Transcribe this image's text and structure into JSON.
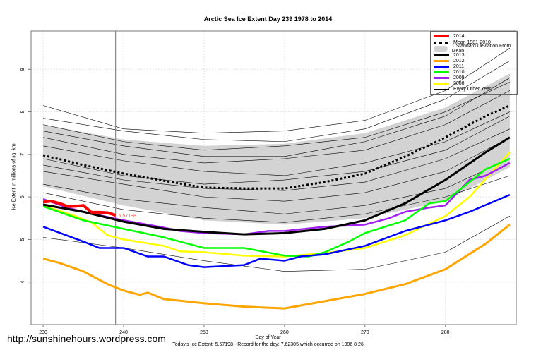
{
  "chart_data": {
    "type": "line",
    "title": "Arctic Sea Ice Extent Day 239 1978 to 2014",
    "xlabel": "Day of Year",
    "ylabel": "Ice Extent in millions of sq. km.",
    "subtitle": "Today's Ice Extent: 5.57198  - Record for the day: 7.62305 which occurred on 1996 8 26",
    "xlim": [
      228.5,
      288.8
    ],
    "ylim": [
      3.0,
      9.9
    ],
    "xticks": [
      230,
      240,
      250,
      260,
      270,
      280
    ],
    "yticks": [
      4,
      5,
      6,
      7,
      8,
      9
    ],
    "grid": true,
    "legend_position": "top-right",
    "vline_day": 239,
    "annotation": {
      "x": 239,
      "y": 5.57198,
      "text": "5.57198"
    },
    "band": {
      "name": "1 Standard Deviation From Mean",
      "color": "#d3d3d3",
      "x": [
        230,
        240,
        250,
        260,
        270,
        280,
        288
      ],
      "upper": [
        7.7,
        7.35,
        7.2,
        7.25,
        7.5,
        8.1,
        8.9
      ],
      "lower": [
        6.25,
        5.8,
        5.45,
        5.35,
        5.5,
        5.9,
        6.7
      ]
    },
    "series": [
      {
        "name": "2014",
        "color": "#ff0000",
        "width": 4,
        "x": [
          230,
          231,
          232,
          233,
          234,
          235,
          236,
          237,
          238,
          239
        ],
        "y": [
          5.88,
          5.9,
          5.85,
          5.78,
          5.78,
          5.8,
          5.64,
          5.64,
          5.63,
          5.57
        ]
      },
      {
        "name": "Mean 1981-2010",
        "color": "#000000",
        "width": 3,
        "dash": "3,3",
        "x": [
          230,
          235,
          240,
          245,
          250,
          255,
          260,
          265,
          270,
          275,
          280,
          285,
          288
        ],
        "y": [
          6.98,
          6.75,
          6.55,
          6.38,
          6.22,
          6.2,
          6.2,
          6.35,
          6.55,
          6.95,
          7.4,
          7.9,
          8.15
        ]
      },
      {
        "name": "2013",
        "color": "#000000",
        "width": 3,
        "x": [
          230,
          235,
          240,
          245,
          250,
          255,
          260,
          265,
          270,
          275,
          280,
          285,
          288
        ],
        "y": [
          5.82,
          5.65,
          5.42,
          5.25,
          5.18,
          5.12,
          5.15,
          5.25,
          5.45,
          5.85,
          6.4,
          7.05,
          7.4
        ]
      },
      {
        "name": "2012",
        "color": "#ffa500",
        "width": 3,
        "x": [
          230,
          232,
          235,
          238,
          240,
          242,
          243,
          245,
          250,
          255,
          260,
          265,
          270,
          275,
          280,
          285,
          288
        ],
        "y": [
          4.55,
          4.45,
          4.25,
          3.95,
          3.8,
          3.7,
          3.75,
          3.6,
          3.5,
          3.42,
          3.38,
          3.55,
          3.72,
          3.95,
          4.3,
          4.9,
          5.35
        ]
      },
      {
        "name": "2011",
        "color": "#0000ff",
        "width": 2.5,
        "x": [
          230,
          235,
          237,
          240,
          243,
          245,
          248,
          250,
          255,
          257,
          260,
          262,
          265,
          270,
          275,
          280,
          283,
          288
        ],
        "y": [
          5.3,
          4.95,
          4.8,
          4.8,
          4.6,
          4.6,
          4.4,
          4.35,
          4.4,
          4.55,
          4.5,
          4.6,
          4.65,
          4.85,
          5.2,
          5.45,
          5.65,
          6.05
        ]
      },
      {
        "name": "2010",
        "color": "#00ff00",
        "width": 2.5,
        "x": [
          230,
          235,
          240,
          245,
          250,
          255,
          260,
          263,
          265,
          268,
          270,
          275,
          278,
          280,
          283,
          285,
          288
        ],
        "y": [
          5.78,
          5.45,
          5.25,
          5.05,
          4.8,
          4.8,
          4.62,
          4.6,
          4.7,
          4.95,
          5.15,
          5.45,
          5.85,
          5.9,
          6.35,
          6.65,
          6.9
        ]
      },
      {
        "name": "2009",
        "color": "#a020f0",
        "width": 2.5,
        "x": [
          230,
          233,
          235,
          240,
          245,
          247,
          250,
          255,
          258,
          260,
          265,
          270,
          273,
          275,
          278,
          280,
          283,
          285,
          288
        ],
        "y": [
          5.95,
          5.75,
          5.65,
          5.45,
          5.28,
          5.2,
          5.15,
          5.12,
          5.2,
          5.2,
          5.3,
          5.35,
          5.5,
          5.65,
          5.75,
          5.8,
          6.4,
          6.5,
          6.8
        ]
      },
      {
        "name": "2008",
        "color": "#ffff00",
        "width": 2.5,
        "x": [
          230,
          234,
          236,
          238,
          240,
          245,
          247,
          250,
          255,
          260,
          265,
          270,
          275,
          280,
          283,
          288
        ],
        "y": [
          5.8,
          5.55,
          5.4,
          5.1,
          5.0,
          4.85,
          4.72,
          4.7,
          4.62,
          4.6,
          4.68,
          4.8,
          5.1,
          5.55,
          6.0,
          7.05
        ]
      }
    ],
    "other_years": {
      "name": "Every Other Year",
      "color": "#000000",
      "series": [
        {
          "x": [
            230,
            240,
            250,
            260,
            270,
            280,
            288
          ],
          "y": [
            8.15,
            7.6,
            7.5,
            7.55,
            7.8,
            8.5,
            9.5
          ]
        },
        {
          "x": [
            230,
            240,
            250,
            260,
            270,
            280,
            288
          ],
          "y": [
            7.85,
            7.55,
            7.35,
            7.3,
            7.6,
            8.3,
            9.2
          ]
        },
        {
          "x": [
            230,
            240,
            250,
            260,
            270,
            280,
            288
          ],
          "y": [
            7.7,
            7.3,
            7.1,
            7.2,
            7.4,
            8.0,
            8.7
          ]
        },
        {
          "x": [
            230,
            240,
            250,
            260,
            270,
            280,
            288
          ],
          "y": [
            7.4,
            7.0,
            6.8,
            6.9,
            7.1,
            7.7,
            8.5
          ]
        },
        {
          "x": [
            230,
            240,
            250,
            260,
            270,
            280,
            288
          ],
          "y": [
            7.2,
            6.85,
            6.6,
            6.5,
            6.8,
            7.3,
            8.0
          ]
        },
        {
          "x": [
            230,
            240,
            250,
            260,
            270,
            280,
            288
          ],
          "y": [
            6.9,
            6.5,
            6.3,
            6.4,
            6.6,
            7.1,
            7.9
          ]
        },
        {
          "x": [
            230,
            240,
            250,
            260,
            270,
            280,
            288
          ],
          "y": [
            6.6,
            6.3,
            6.0,
            5.9,
            6.1,
            6.6,
            7.4
          ]
        },
        {
          "x": [
            230,
            240,
            250,
            260,
            270,
            280,
            288
          ],
          "y": [
            6.3,
            5.95,
            5.75,
            5.6,
            5.8,
            6.2,
            6.9
          ]
        },
        {
          "x": [
            230,
            240,
            250,
            260,
            270,
            280,
            288
          ],
          "y": [
            6.1,
            5.7,
            5.5,
            5.4,
            5.6,
            6.0,
            6.5
          ]
        },
        {
          "x": [
            230,
            240,
            250,
            260,
            270,
            280,
            288
          ],
          "y": [
            5.05,
            4.8,
            4.5,
            4.25,
            4.3,
            4.7,
            5.55
          ]
        },
        {
          "x": [
            230,
            240,
            250,
            260,
            270,
            280,
            288
          ],
          "y": [
            7.55,
            7.2,
            6.95,
            6.95,
            7.3,
            7.9,
            8.8
          ]
        },
        {
          "x": [
            230,
            240,
            250,
            260,
            270,
            280,
            288
          ],
          "y": [
            6.75,
            6.4,
            6.2,
            6.15,
            6.35,
            6.9,
            7.6
          ]
        }
      ]
    },
    "legend": [
      "2014",
      "Mean 1981-2010",
      "1 Standard Deviation From Mean",
      "2013",
      "2012",
      "2011",
      "2010",
      "2009",
      "2008",
      "Every Other Year"
    ]
  },
  "watermark": "http://sunshinehours.wordpress.com"
}
